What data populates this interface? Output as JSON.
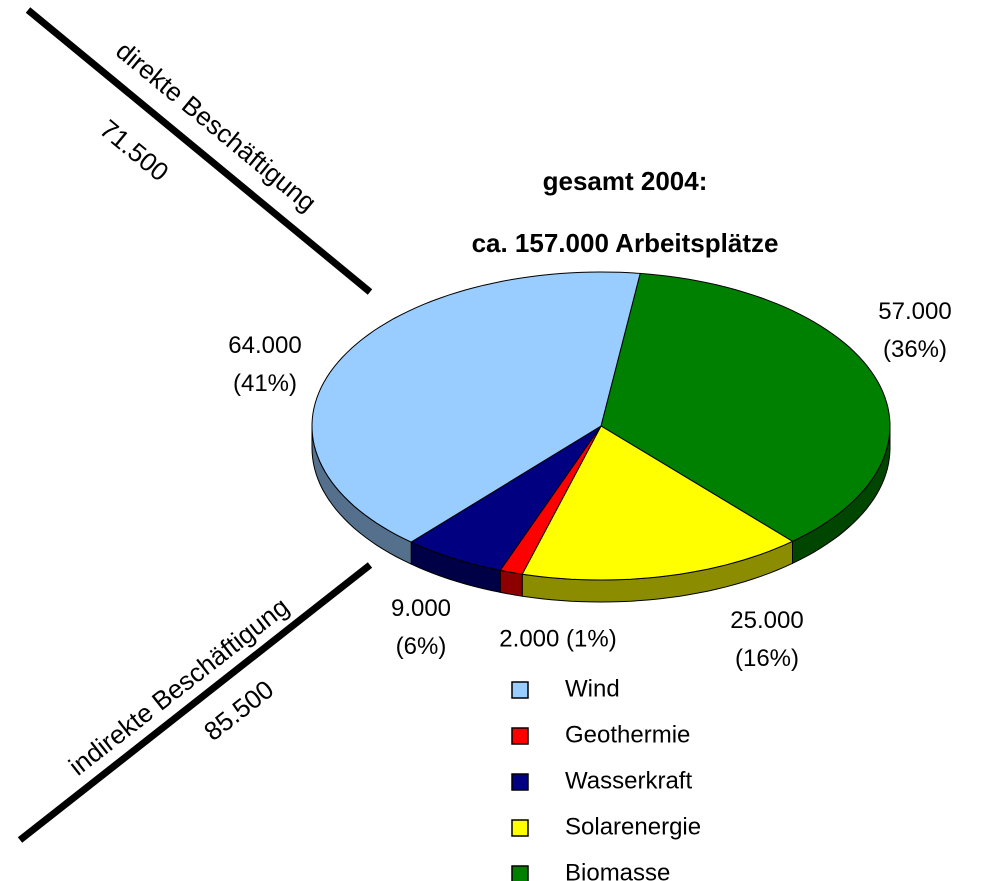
{
  "chart_data": {
    "type": "pie",
    "title": "gesamt 2004:",
    "subtitle": "ca. 157.000 Arbeitsplätze",
    "categories": [
      "Wind",
      "Geothermie",
      "Wasserkraft",
      "Solarenergie",
      "Biomasse"
    ],
    "values": [
      64000,
      2000,
      9000,
      25000,
      57000
    ],
    "value_labels": [
      "64.000 (41%)",
      "2.000 (1%)",
      "9.000 (6%)",
      "25.000 (16%)",
      "57.000 (36%)"
    ],
    "colors": [
      "#99ccff",
      "#ff0000",
      "#000080",
      "#ffff00",
      "#008000"
    ],
    "annotations": [
      "direkte Beschäftigung",
      "71.500",
      "indirekte Beschäftigung",
      "85.500"
    ]
  }
}
